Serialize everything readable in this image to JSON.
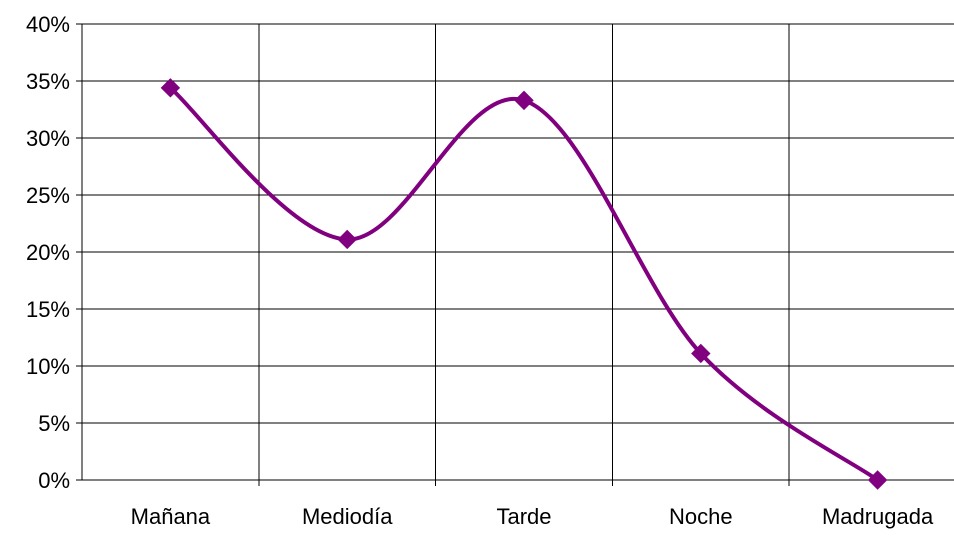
{
  "chart_data": {
    "type": "line",
    "categories": [
      "Mañana",
      "Mediodía",
      "Tarde",
      "Noche",
      "Madrugada"
    ],
    "series": [
      {
        "values": [
          34.4,
          21.1,
          33.3,
          11.1,
          0.0
        ],
        "color": "#800080",
        "marker": "diamond",
        "smooth": true
      }
    ],
    "yticks": [
      "0%",
      "5%",
      "10%",
      "15%",
      "20%",
      "25%",
      "30%",
      "35%",
      "40%"
    ],
    "ylim": [
      0,
      40
    ],
    "grid": true
  }
}
